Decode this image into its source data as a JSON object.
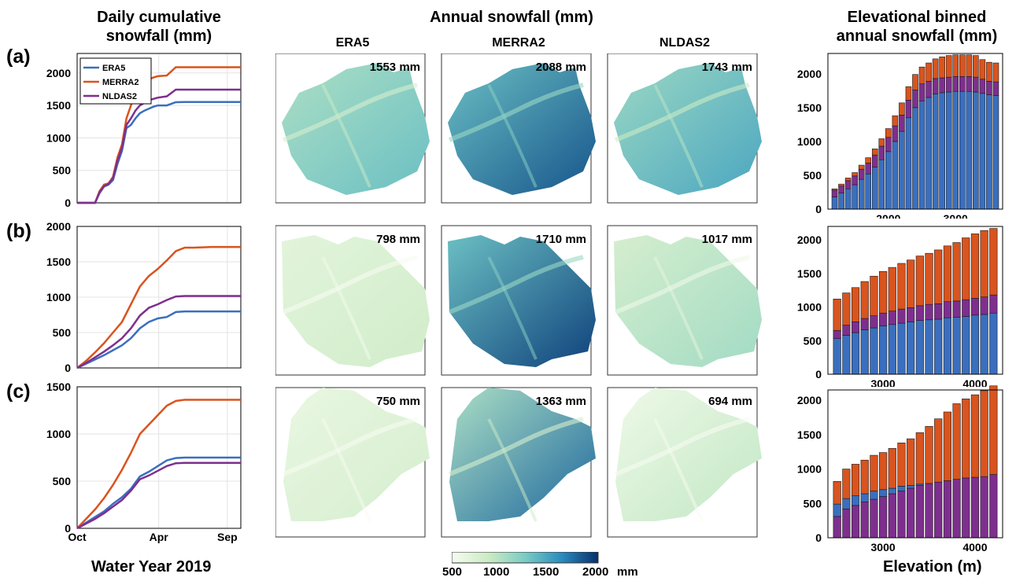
{
  "headers": {
    "left": "Daily cumulative snowfall (mm)",
    "left_line1": "Daily cumulative",
    "left_line2": "snowfall (mm)",
    "middle": "Annual snowfall (mm)",
    "right_line1": "Elevational binned",
    "right_line2": "annual snowfall (mm)"
  },
  "row_labels": [
    "(a)",
    "(b)",
    "(c)"
  ],
  "map_columns": [
    "ERA5",
    "MERRA2",
    "NLDAS2"
  ],
  "map_totals": [
    [
      "1553 mm",
      "2088 mm",
      "1743 mm"
    ],
    [
      "798 mm",
      "1710 mm",
      "1017 mm"
    ],
    [
      "750 mm",
      "1363 mm",
      "694 mm"
    ]
  ],
  "footer": {
    "xlabel_left": "Water Year 2019",
    "xlabel_right": "Elevation (m)"
  },
  "colorbar": {
    "ticks": [
      "500",
      "1000",
      "1500",
      "2000"
    ],
    "unit": "mm",
    "range": [
      500,
      2000
    ],
    "colors": [
      "#f7fcf0",
      "#ccebc5",
      "#7bccc4",
      "#2b8cbe",
      "#08306b"
    ]
  },
  "series_colors": {
    "ERA5": "#3a6fbf",
    "MERRA2": "#d9541e",
    "NLDAS2": "#7e2f8e"
  },
  "chart_data": [
    {
      "type": "line",
      "panel": "a-timeseries",
      "legend": [
        "ERA5",
        "MERRA2",
        "NLDAS2"
      ],
      "xticks": [
        "Oct",
        "Apr",
        "Sep"
      ],
      "ylim": [
        0,
        2300
      ],
      "yticks": [
        0,
        500,
        1000,
        1500,
        2000
      ],
      "x": [
        0,
        20,
        40,
        50,
        60,
        70,
        80,
        90,
        100,
        110,
        120,
        130,
        140,
        150,
        160,
        170,
        180,
        200,
        220,
        240,
        260,
        300,
        365
      ],
      "series": [
        {
          "name": "ERA5",
          "values": [
            0,
            0,
            0,
            150,
            250,
            280,
            350,
            600,
            800,
            1150,
            1200,
            1300,
            1380,
            1420,
            1450,
            1480,
            1500,
            1500,
            1550,
            1553,
            1553,
            1553,
            1553
          ]
        },
        {
          "name": "MERRA2",
          "values": [
            0,
            0,
            0,
            180,
            280,
            300,
            400,
            700,
            900,
            1300,
            1500,
            1700,
            1800,
            1850,
            1900,
            1930,
            1950,
            1960,
            2088,
            2088,
            2088,
            2088,
            2088
          ]
        },
        {
          "name": "NLDAS2",
          "values": [
            0,
            0,
            0,
            160,
            260,
            290,
            380,
            650,
            850,
            1200,
            1300,
            1420,
            1500,
            1540,
            1580,
            1600,
            1620,
            1640,
            1743,
            1743,
            1743,
            1743,
            1743
          ]
        }
      ]
    },
    {
      "type": "line",
      "panel": "b-timeseries",
      "xticks": [
        "Oct",
        "Apr",
        "Sep"
      ],
      "ylim": [
        0,
        2000
      ],
      "yticks": [
        0,
        500,
        1000,
        1500,
        2000
      ],
      "x": [
        0,
        20,
        40,
        60,
        80,
        100,
        120,
        140,
        160,
        180,
        200,
        220,
        240,
        260,
        300,
        365
      ],
      "series": [
        {
          "name": "ERA5",
          "values": [
            0,
            60,
            120,
            180,
            250,
            320,
            420,
            560,
            650,
            700,
            720,
            790,
            798,
            798,
            798,
            798
          ]
        },
        {
          "name": "MERRA2",
          "values": [
            0,
            100,
            220,
            350,
            500,
            650,
            900,
            1150,
            1300,
            1400,
            1520,
            1650,
            1700,
            1700,
            1710,
            1710
          ]
        },
        {
          "name": "NLDAS2",
          "values": [
            0,
            70,
            150,
            230,
            320,
            420,
            560,
            740,
            850,
            900,
            960,
            1010,
            1017,
            1017,
            1017,
            1017
          ]
        }
      ]
    },
    {
      "type": "line",
      "panel": "c-timeseries",
      "xticks": [
        "Oct",
        "Apr",
        "Sep"
      ],
      "ylim": [
        0,
        1500
      ],
      "yticks": [
        0,
        500,
        1000,
        1500
      ],
      "x": [
        0,
        20,
        40,
        60,
        80,
        100,
        120,
        140,
        160,
        180,
        200,
        220,
        240,
        260,
        300,
        365
      ],
      "series": [
        {
          "name": "ERA5",
          "values": [
            0,
            60,
            120,
            180,
            260,
            330,
            420,
            550,
            600,
            660,
            720,
            745,
            750,
            750,
            750,
            750
          ]
        },
        {
          "name": "MERRA2",
          "values": [
            0,
            100,
            200,
            320,
            460,
            620,
            800,
            1000,
            1100,
            1200,
            1300,
            1350,
            1363,
            1363,
            1363,
            1363
          ]
        },
        {
          "name": "NLDAS2",
          "values": [
            0,
            50,
            100,
            160,
            230,
            300,
            400,
            520,
            560,
            610,
            660,
            690,
            694,
            694,
            694,
            694
          ]
        }
      ]
    },
    {
      "type": "bar",
      "panel": "a-elevation",
      "stacked": true,
      "xticks": [
        2000,
        3000
      ],
      "ylim": [
        0,
        2300
      ],
      "yticks": [
        0,
        500,
        1000,
        1500,
        2000
      ],
      "x": [
        1200,
        1300,
        1400,
        1500,
        1600,
        1700,
        1800,
        1900,
        2000,
        2100,
        2200,
        2300,
        2400,
        2500,
        2600,
        2700,
        2800,
        2900,
        3000,
        3100,
        3200,
        3300,
        3400,
        3500,
        3600
      ],
      "series": [
        {
          "name": "ERA5",
          "values": [
            180,
            240,
            300,
            360,
            440,
            520,
            620,
            730,
            850,
            1000,
            1150,
            1350,
            1500,
            1600,
            1650,
            1700,
            1720,
            1730,
            1740,
            1740,
            1740,
            1730,
            1710,
            1690,
            1680
          ]
        },
        {
          "name": "NLDAS2",
          "values": [
            100,
            100,
            120,
            130,
            150,
            160,
            180,
            200,
            210,
            230,
            240,
            260,
            260,
            250,
            240,
            230,
            220,
            220,
            220,
            220,
            220,
            220,
            210,
            200,
            200
          ]
        },
        {
          "name": "MERRA2",
          "values": [
            20,
            30,
            40,
            50,
            60,
            80,
            90,
            110,
            130,
            150,
            180,
            200,
            230,
            250,
            270,
            290,
            310,
            320,
            320,
            320,
            320,
            320,
            290,
            280,
            280
          ]
        }
      ]
    },
    {
      "type": "bar",
      "panel": "b-elevation",
      "stacked": true,
      "xticks": [
        3000,
        4000
      ],
      "ylim": [
        0,
        2200
      ],
      "yticks": [
        0,
        500,
        1000,
        1500,
        2000
      ],
      "x": [
        2500,
        2600,
        2700,
        2800,
        2900,
        3000,
        3100,
        3200,
        3300,
        3400,
        3500,
        3600,
        3700,
        3800,
        3900,
        4000,
        4100,
        4200
      ],
      "series": [
        {
          "name": "ERA5",
          "values": [
            530,
            580,
            620,
            660,
            690,
            720,
            740,
            760,
            780,
            800,
            810,
            820,
            840,
            850,
            860,
            880,
            890,
            910
          ]
        },
        {
          "name": "NLDAS2",
          "values": [
            120,
            150,
            160,
            170,
            180,
            190,
            200,
            210,
            210,
            220,
            230,
            230,
            240,
            240,
            250,
            250,
            260,
            270
          ]
        },
        {
          "name": "MERRA2",
          "values": [
            470,
            480,
            510,
            550,
            590,
            620,
            650,
            680,
            710,
            740,
            760,
            800,
            830,
            870,
            920,
            960,
            990,
            990
          ]
        }
      ]
    },
    {
      "type": "bar",
      "panel": "c-elevation",
      "stacked": true,
      "xticks": [
        3000,
        4000
      ],
      "ylim": [
        0,
        2150
      ],
      "yticks": [
        0,
        500,
        1000,
        1500,
        2000
      ],
      "x": [
        2500,
        2600,
        2700,
        2800,
        2900,
        3000,
        3100,
        3200,
        3300,
        3400,
        3500,
        3600,
        3700,
        3800,
        3900,
        4000,
        4100,
        4200
      ],
      "series": [
        {
          "name": "NLDAS2",
          "values": [
            310,
            420,
            470,
            520,
            560,
            600,
            640,
            680,
            720,
            760,
            790,
            810,
            830,
            850,
            870,
            880,
            890,
            920
          ]
        },
        {
          "name": "ERA5",
          "values": [
            180,
            150,
            140,
            120,
            120,
            100,
            80,
            70,
            40,
            20,
            0,
            0,
            0,
            0,
            0,
            0,
            0,
            0
          ]
        },
        {
          "name": "MERRA2",
          "values": [
            330,
            430,
            460,
            490,
            520,
            540,
            580,
            630,
            680,
            750,
            830,
            920,
            1000,
            1100,
            1150,
            1200,
            1250,
            1290
          ]
        }
      ]
    }
  ]
}
